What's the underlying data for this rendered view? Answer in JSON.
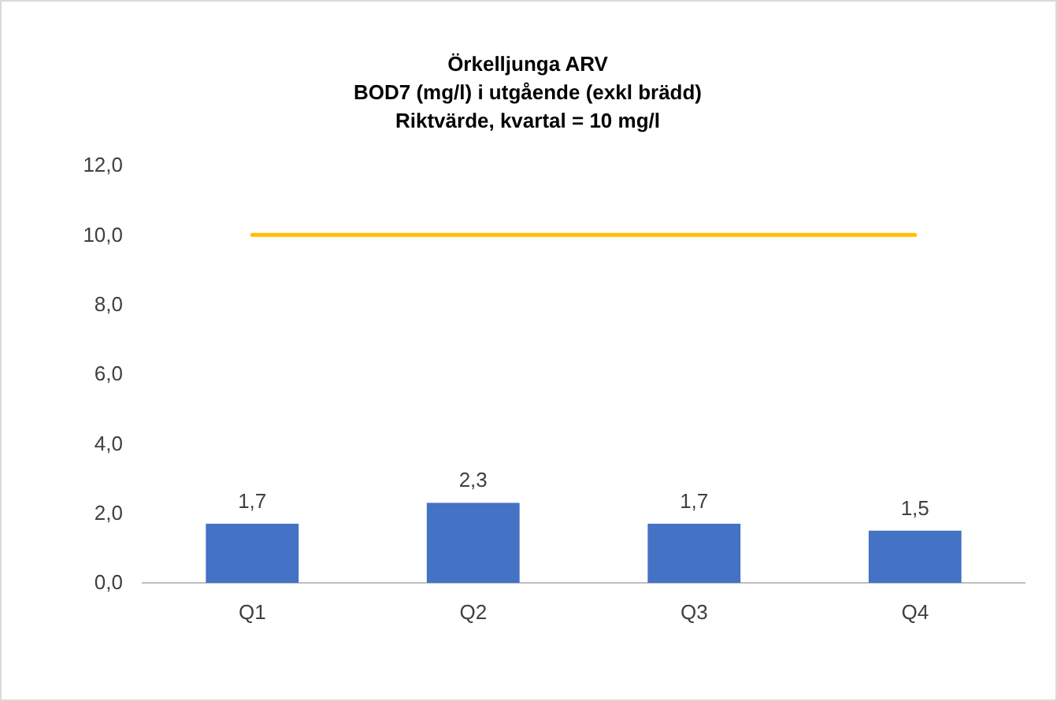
{
  "chart_data": {
    "type": "bar",
    "title": "Örkelljunga ARV\nBOD7 (mg/l) i utgående (exkl brädd)\nRiktvärde, kvartal = 10 mg/l",
    "categories": [
      "Q1",
      "Q2",
      "Q3",
      "Q4"
    ],
    "series": [
      {
        "color": "#4472c4",
        "values": [
          1.7,
          2.3,
          1.7,
          1.5
        ],
        "value_labels": [
          "1,7",
          "2,3",
          "1,7",
          "1,5"
        ]
      },
      {
        "type": "line",
        "color": "#ffc000",
        "values": [
          10,
          10,
          10,
          10
        ]
      }
    ],
    "ylim": [
      0,
      12
    ],
    "yticks": [
      {
        "value": 0,
        "label": "0,0"
      },
      {
        "value": 2,
        "label": "2,0"
      },
      {
        "value": 4,
        "label": "4,0"
      },
      {
        "value": 6,
        "label": "6,0"
      },
      {
        "value": 8,
        "label": "8,0"
      },
      {
        "value": 10,
        "label": "10,0"
      },
      {
        "value": 12,
        "label": "12,0"
      }
    ],
    "grid": false
  }
}
